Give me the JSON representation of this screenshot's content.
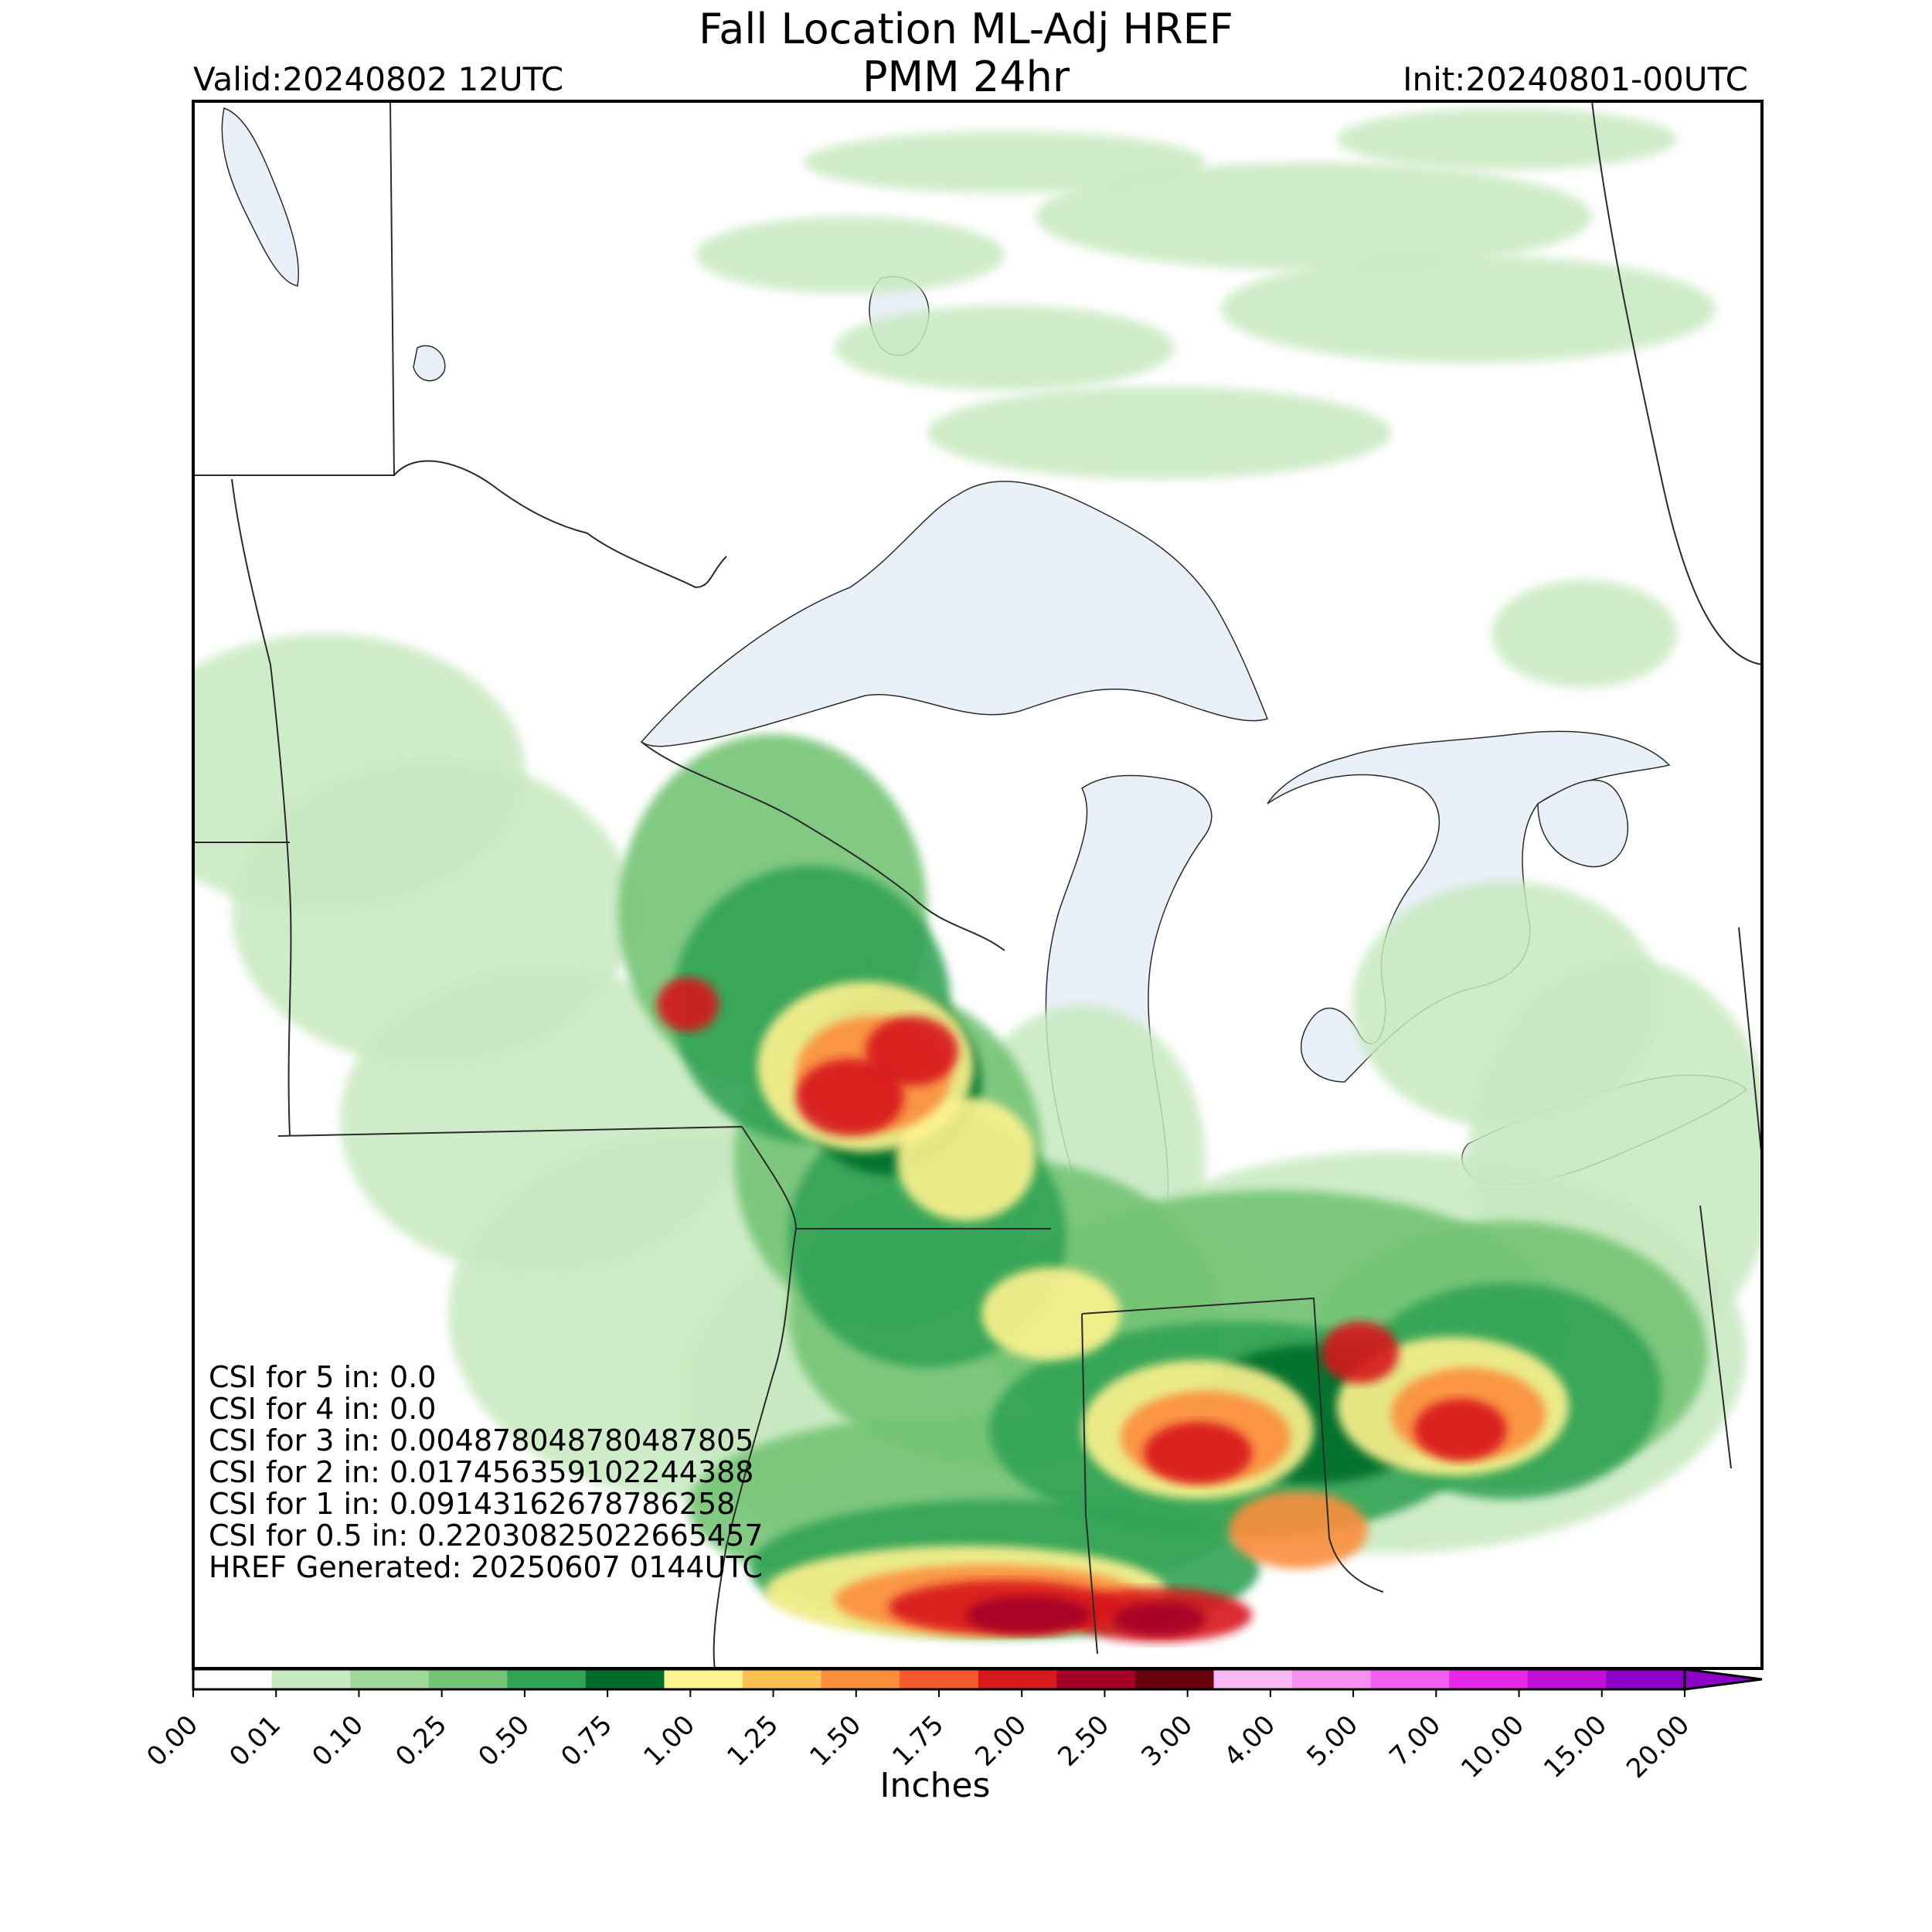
{
  "header": {
    "title_line1": "Fall Location ML-Adj HREF",
    "title_line2": "PMM 24hr",
    "valid": "Valid:20240802 12UTC",
    "init": "Init:20240801-00UTC"
  },
  "stats": [
    "CSI for 5 in: 0.0",
    "CSI for 4 in: 0.0",
    "CSI for 3 in: 0.004878048780487805",
    "CSI for 2 in: 0.017456359102244388",
    "CSI for 1 in: 0.09143162678786258",
    "CSI for 0.5 in: 0.22030825022665457",
    "HREF Generated: 20250607 0144UTC"
  ],
  "colorbar": {
    "units": "Inches",
    "levels": [
      "0.00",
      "0.01",
      "0.10",
      "0.25",
      "0.50",
      "0.75",
      "1.00",
      "1.25",
      "1.50",
      "1.75",
      "2.00",
      "2.50",
      "3.00",
      "4.00",
      "5.00",
      "7.00",
      "10.00",
      "15.00",
      "20.00"
    ],
    "colors": [
      "#ffffff",
      "#c7e9c0",
      "#a1d99b",
      "#74c476",
      "#31a354",
      "#006d2c",
      "#fff38f",
      "#fdc150",
      "#fc8d3c",
      "#f55a2c",
      "#d7191c",
      "#a50026",
      "#67000d",
      "#f7b8f4",
      "#f58ff0",
      "#f25ef0",
      "#e429e8",
      "#c00fd6",
      "#8c00c8"
    ]
  },
  "map_colors": {
    "water": "#eaf0f8",
    "border": "#2b2b2b",
    "light_green": "#c7e9c0",
    "green": "#74c476",
    "dark_green": "#31a354",
    "deep_green": "#006d2c",
    "yellow": "#fff38f",
    "orange": "#fc8d3c",
    "red": "#d7191c",
    "dark_red": "#a50026"
  }
}
